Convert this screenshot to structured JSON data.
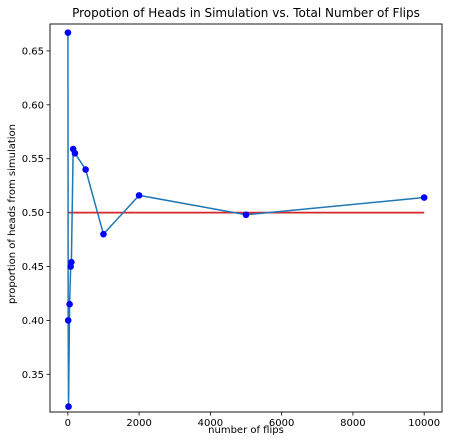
{
  "chart_data": {
    "type": "line",
    "title": "Propotion of Heads in Simulation vs. Total Number of Flips",
    "xlabel": "number of flips",
    "ylabel": "proportion of heads from simulation",
    "xlim": [
      -500,
      10500
    ],
    "ylim": [
      0.315,
      0.675
    ],
    "xticks": [
      0,
      2000,
      4000,
      6000,
      8000,
      10000
    ],
    "yticks": [
      0.35,
      0.4,
      0.45,
      0.5,
      0.55,
      0.6,
      0.65
    ],
    "ytick_labels": [
      "0.35",
      "0.40",
      "0.45",
      "0.50",
      "0.55",
      "0.60",
      "0.65"
    ],
    "grid": false,
    "series": [
      {
        "style": "line+markers",
        "line_color": "#1f77b4",
        "marker_color": "#0000ff",
        "x": [
          3,
          10,
          20,
          50,
          80,
          100,
          150,
          200,
          500,
          1000,
          2000,
          5000,
          10000
        ],
        "y": [
          0.667,
          0.4,
          0.32,
          0.415,
          0.45,
          0.454,
          0.559,
          0.555,
          0.54,
          0.48,
          0.516,
          0.498,
          0.514
        ]
      },
      {
        "style": "line",
        "line_color": "#d62728",
        "x": [
          0,
          10000
        ],
        "y": [
          0.5,
          0.5
        ]
      }
    ]
  }
}
